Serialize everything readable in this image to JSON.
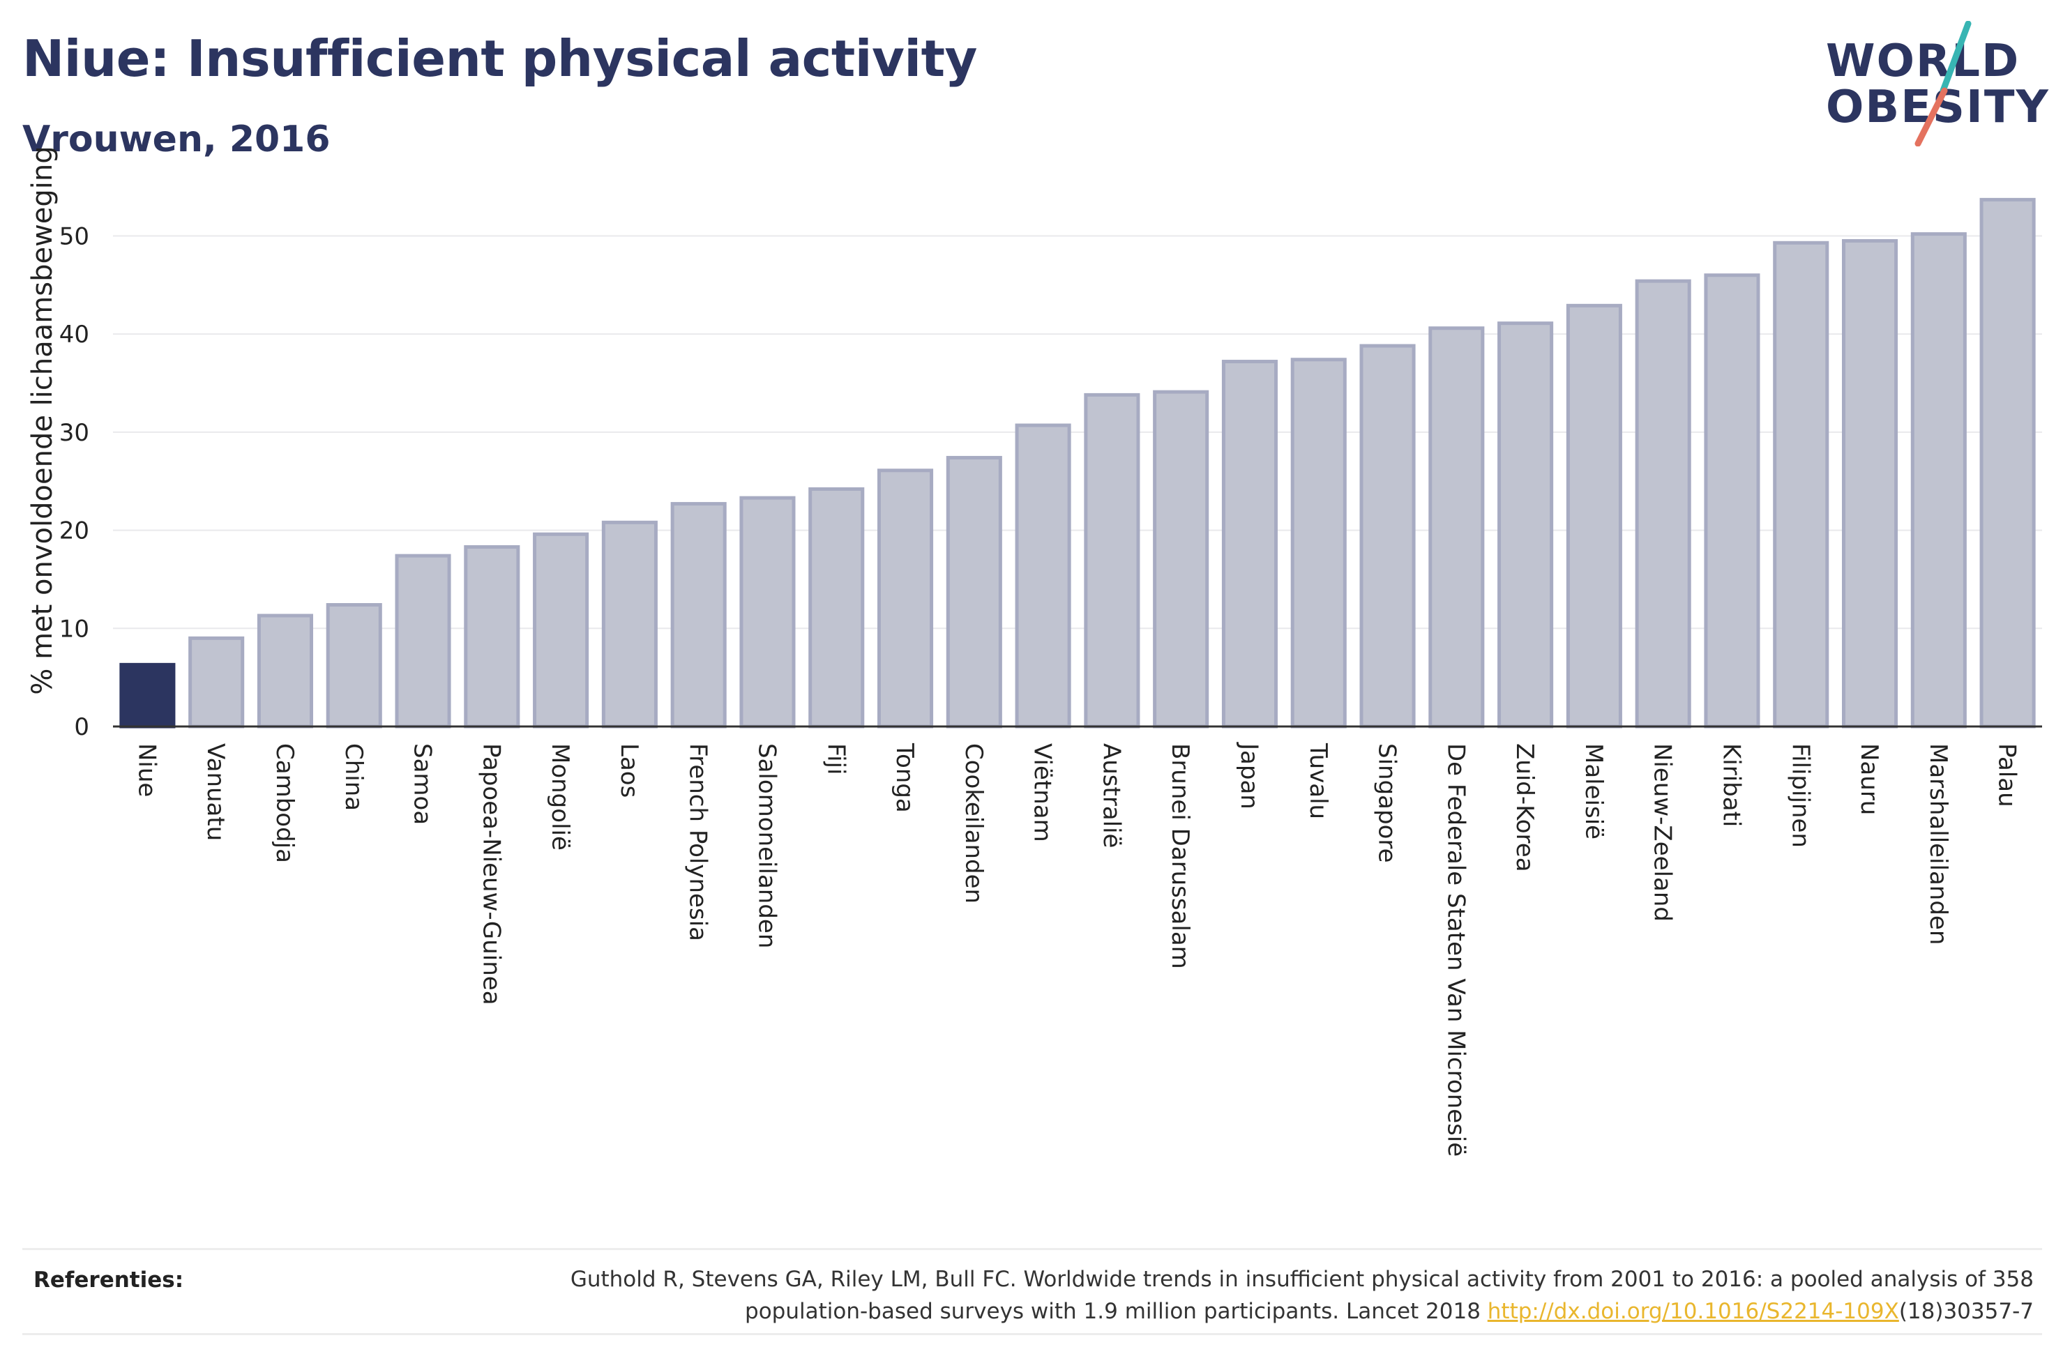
{
  "header": {
    "title": "Niue: Insufficient physical activity",
    "subtitle": "Vrouwen, 2016"
  },
  "logo": {
    "line1": "WORLD",
    "line2": "OBESITY",
    "accent_colors": [
      "#38b5b3",
      "#e4725f"
    ]
  },
  "chart_data": {
    "type": "bar",
    "ylabel": "% met onvoldoende lichaamsbeweging",
    "ylim": [
      0,
      56
    ],
    "yticks": [
      0,
      10,
      20,
      30,
      40,
      50
    ],
    "grid": true,
    "highlight_category": "Niue",
    "colors": {
      "highlight": "#2c3560",
      "bar_fill": "#c0c3d0",
      "bar_stroke": "#a7abc2"
    },
    "categories": [
      "Niue",
      "Vanuatu",
      "Cambodja",
      "China",
      "Samoa",
      "Papoea-Nieuw-Guinea",
      "Mongolië",
      "Laos",
      "French Polynesia",
      "Salomoneilanden",
      "Fiji",
      "Tonga",
      "Cookeilanden",
      "Viëtnam",
      "Australië",
      "Brunei Darussalam",
      "Japan",
      "Tuvalu",
      "Singapore",
      "De Federale Staten Van Micronesië",
      "Zuid-Korea",
      "Maleisië",
      "Nieuw-Zeeland",
      "Kiribati",
      "Filipijnen",
      "Nauru",
      "Marshalleilanden",
      "Palau"
    ],
    "values": [
      6.3,
      9.0,
      11.3,
      12.4,
      17.4,
      18.3,
      19.6,
      20.8,
      22.7,
      23.3,
      24.2,
      26.1,
      27.4,
      30.7,
      33.8,
      34.1,
      37.2,
      37.4,
      38.8,
      40.6,
      41.1,
      42.9,
      45.4,
      46.0,
      49.3,
      49.5,
      50.2,
      53.7
    ]
  },
  "footer": {
    "label": "Referenties:",
    "citation_line1": "Guthold R, Stevens GA, Riley LM, Bull FC. Worldwide trends in insufficient physical activity from 2001 to 2016: a pooled analysis of 358",
    "citation_line2_before": "population-based surveys with 1.9 million participants. Lancet 2018 ",
    "citation_link": "http://dx.doi.org/10.1016/S2214-109X",
    "citation_line2_after": "(18)30357-7"
  }
}
